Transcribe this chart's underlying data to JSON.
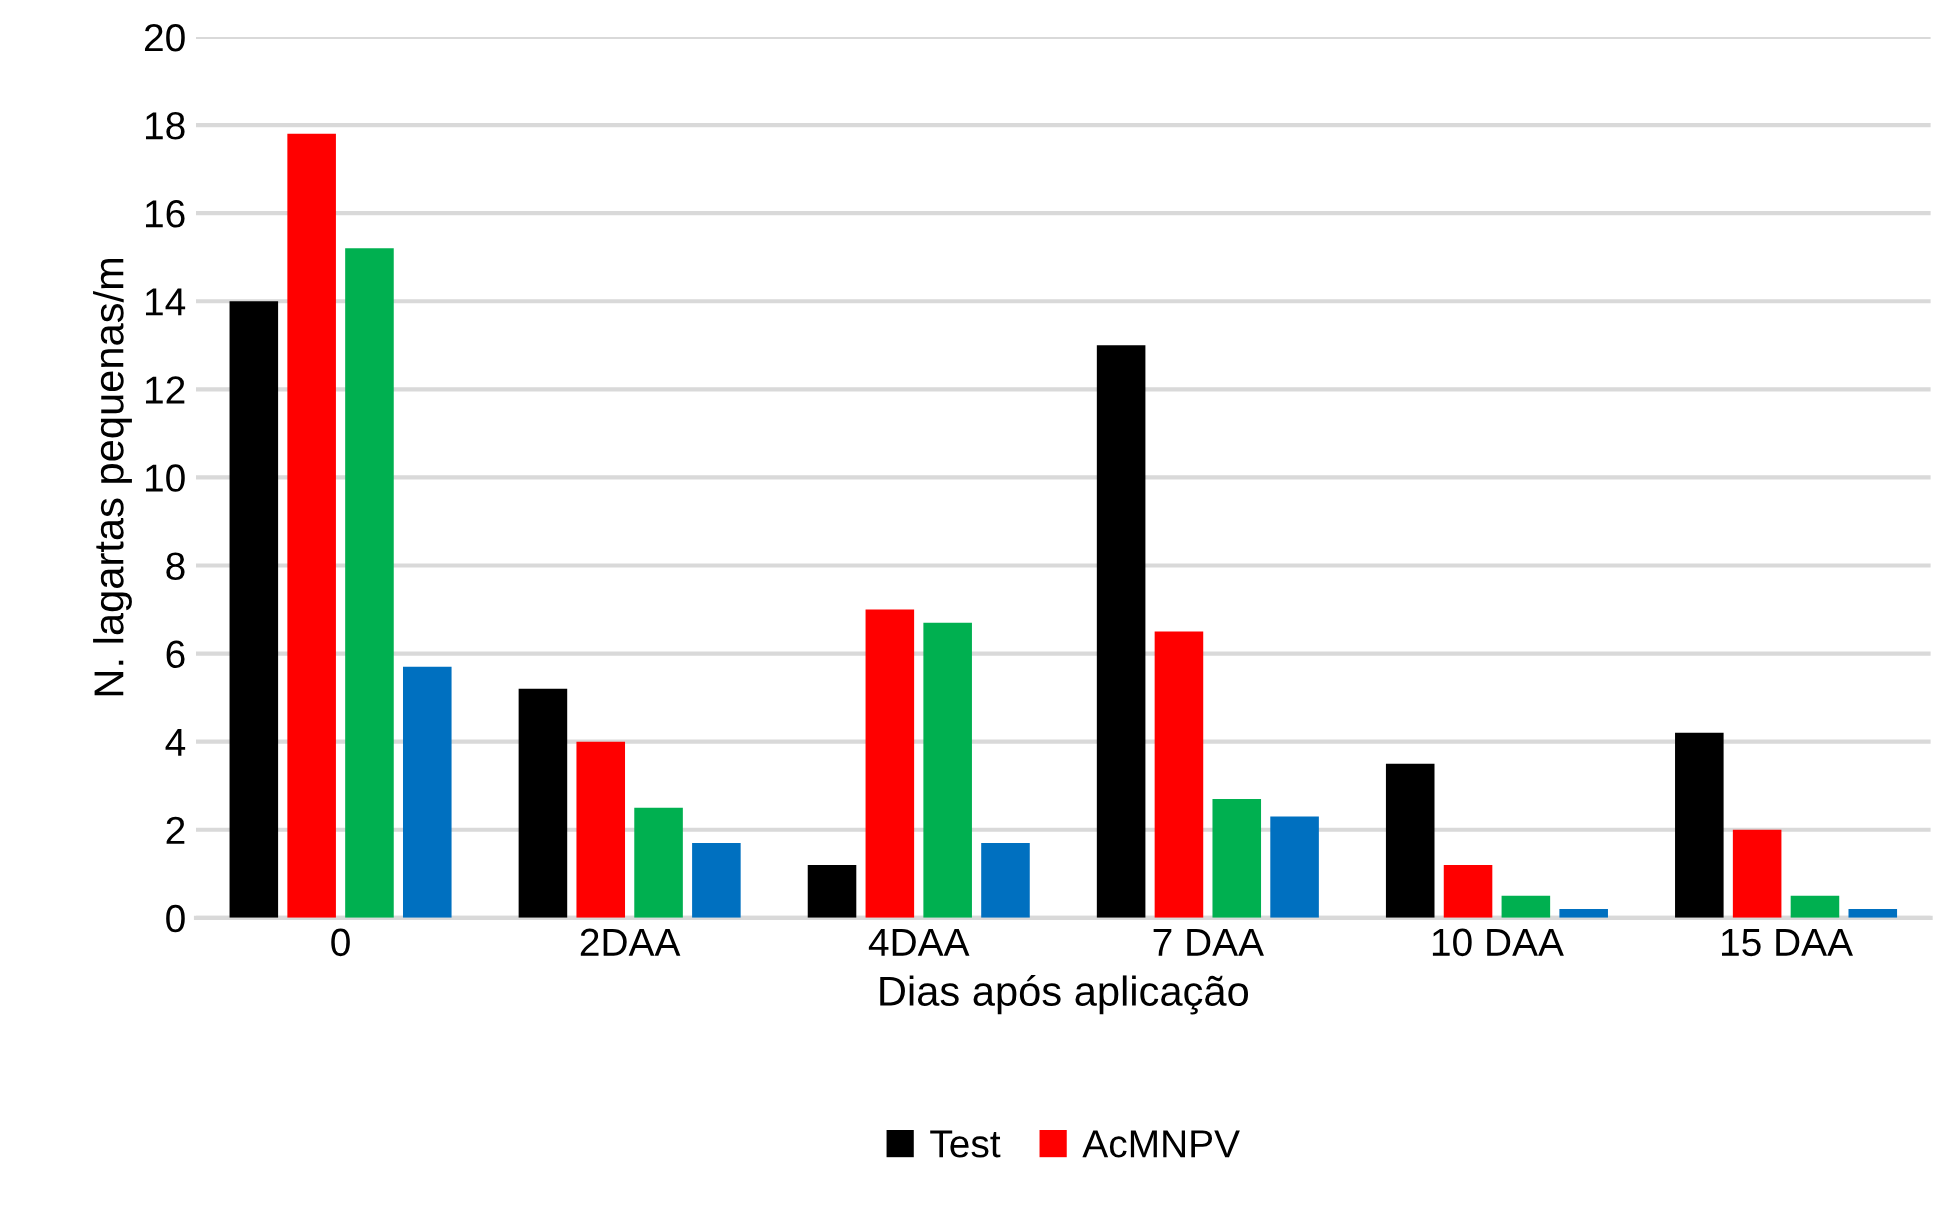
{
  "chart_data": {
    "type": "bar",
    "xlabel": "Dias após aplicação",
    "ylabel": "N. lagartas pequenas/m",
    "categories": [
      "0",
      "2DAA",
      "4DAA",
      "7 DAA",
      "10 DAA",
      "15 DAA"
    ],
    "series": [
      {
        "name": "Test",
        "color": "#000000",
        "values": [
          14,
          5.2,
          1.2,
          13,
          3.5,
          4.2
        ]
      },
      {
        "name": "AcMNPV",
        "color": "#ff0000",
        "values": [
          17.8,
          4.0,
          7.0,
          6.5,
          1.2,
          2.0
        ]
      },
      {
        "color": "#00b050",
        "values": [
          15.2,
          2.5,
          6.7,
          2.7,
          0.5,
          0.5
        ]
      },
      {
        "color": "#0070c0",
        "values": [
          5.7,
          1.7,
          1.7,
          2.3,
          0.2,
          0.2
        ]
      }
    ],
    "ylim": [
      0,
      20
    ],
    "yticks": [
      0,
      2,
      4,
      6,
      8,
      10,
      12,
      14,
      16,
      18,
      20
    ],
    "grid": "y",
    "legend": "bottom"
  }
}
